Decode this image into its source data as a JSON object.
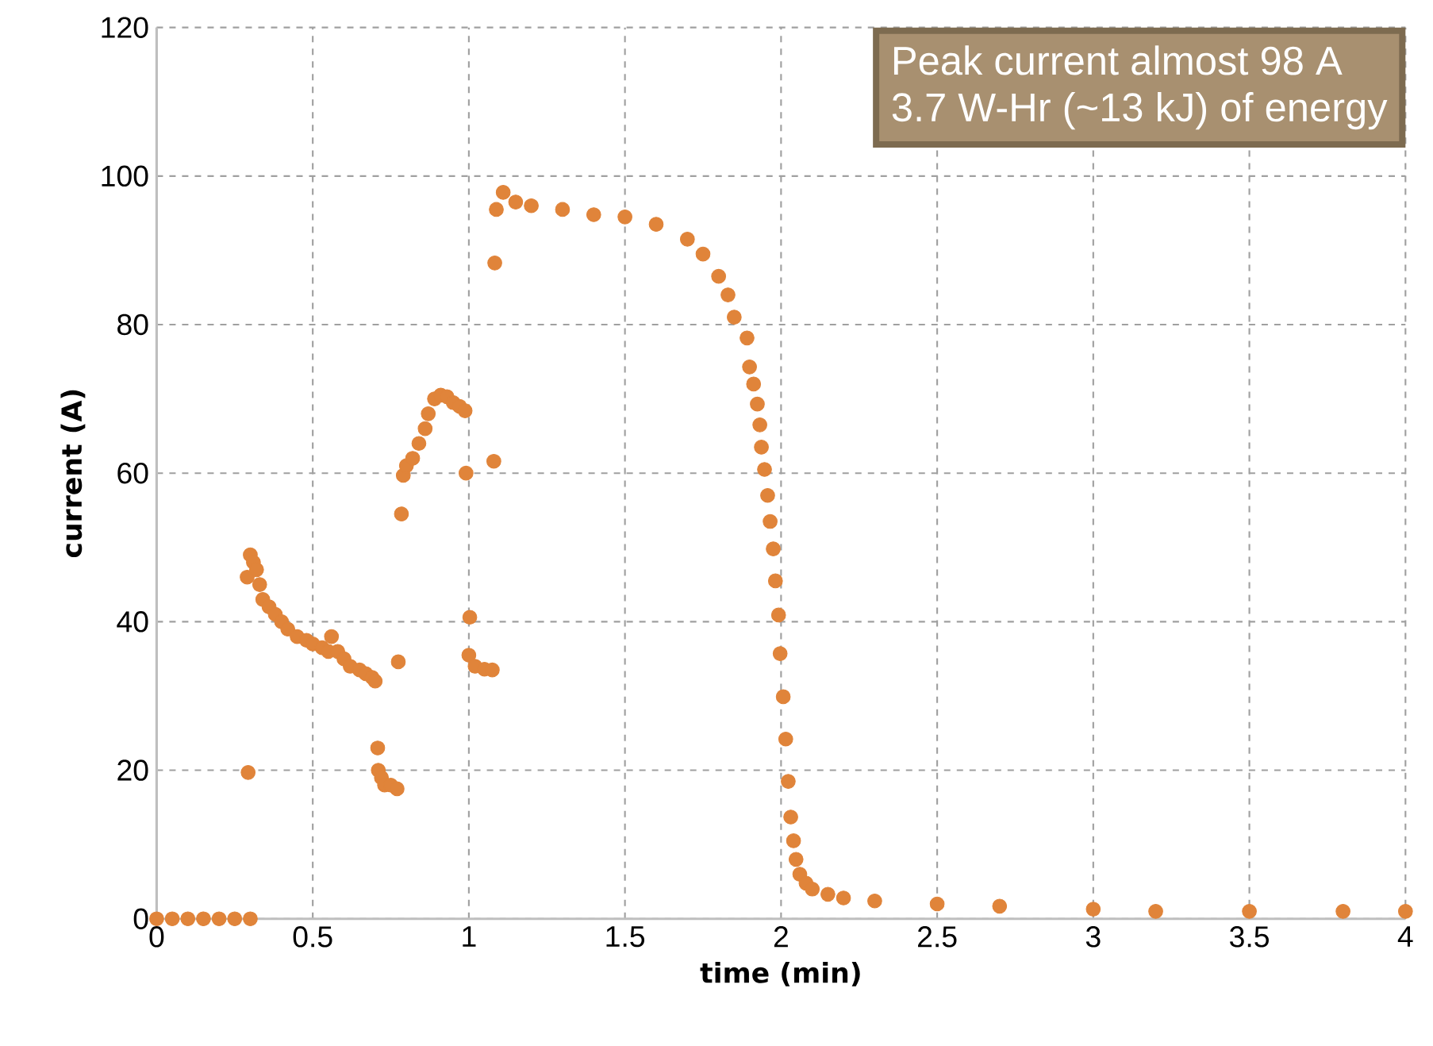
{
  "chart_data": {
    "type": "scatter",
    "xlabel": "time (min)",
    "ylabel": "current (A)",
    "annotations": [
      "Peak current almost 98 A",
      "3.7 W-Hr (~13 kJ) of energy"
    ],
    "xlim": [
      0,
      4
    ],
    "ylim": [
      0,
      120
    ],
    "xticks": [
      0,
      0.5,
      1,
      1.5,
      2,
      2.5,
      3,
      3.5,
      4
    ],
    "yticks": [
      0,
      20,
      40,
      60,
      80,
      100,
      120
    ],
    "grid": true,
    "marker": "circle",
    "series": [
      {
        "color": "#e0843a",
        "x": [
          0,
          0.05,
          0.1,
          0.15,
          0.2,
          0.25,
          0.3,
          0.293,
          0.29,
          0.3,
          0.31,
          0.32,
          0.33,
          0.34,
          0.36,
          0.38,
          0.4,
          0.42,
          0.45,
          0.48,
          0.5,
          0.53,
          0.55,
          0.56,
          0.58,
          0.6,
          0.62,
          0.65,
          0.67,
          0.69,
          0.7,
          0.708,
          0.71,
          0.72,
          0.73,
          0.75,
          0.77,
          0.774,
          0.784,
          0.79,
          0.8,
          0.82,
          0.84,
          0.86,
          0.87,
          0.89,
          0.91,
          0.93,
          0.95,
          0.97,
          0.988,
          0.991,
          1.003,
          1.0,
          1.02,
          1.05,
          1.075,
          1.08,
          1.083,
          1.088,
          1.11,
          1.15,
          1.2,
          1.3,
          1.4,
          1.5,
          1.6,
          1.7,
          1.75,
          1.8,
          1.83,
          1.85,
          1.891,
          1.899,
          1.912,
          1.924,
          1.932,
          1.937,
          1.947,
          1.957,
          1.965,
          1.975,
          1.982,
          1.992,
          1.997,
          2.007,
          2.015,
          2.023,
          2.031,
          2.04,
          2.048,
          2.06,
          2.08,
          2.1,
          2.15,
          2.2,
          2.3,
          2.5,
          2.7,
          3.0,
          3.2,
          3.5,
          3.8,
          4.0
        ],
        "values": [
          0,
          0,
          0,
          0,
          0,
          0,
          0,
          19.7,
          46,
          49,
          48,
          47,
          45,
          43,
          42,
          41,
          40,
          39,
          38,
          37.5,
          37,
          36.5,
          36,
          38,
          36,
          35,
          34,
          33.5,
          33,
          32.5,
          32,
          23,
          20,
          19,
          18,
          18,
          17.5,
          34.6,
          54.5,
          59.7,
          61,
          62,
          64,
          66,
          68,
          70,
          70.5,
          70.3,
          69.5,
          69,
          68.4,
          60,
          40.6,
          35.5,
          34,
          33.6,
          33.5,
          61.6,
          88.3,
          95.5,
          97.8,
          96.5,
          96,
          95.5,
          94.8,
          94.5,
          93.5,
          91.5,
          89.5,
          86.5,
          84,
          81,
          78.2,
          74.3,
          72,
          69.3,
          66.5,
          63.5,
          60.5,
          57,
          53.5,
          49.8,
          45.5,
          40.9,
          35.7,
          29.9,
          24.2,
          18.5,
          13.7,
          10.5,
          8,
          6,
          4.8,
          4,
          3.3,
          2.8,
          2.4,
          2,
          1.7,
          1.3,
          1,
          1,
          1,
          1
        ]
      }
    ]
  }
}
